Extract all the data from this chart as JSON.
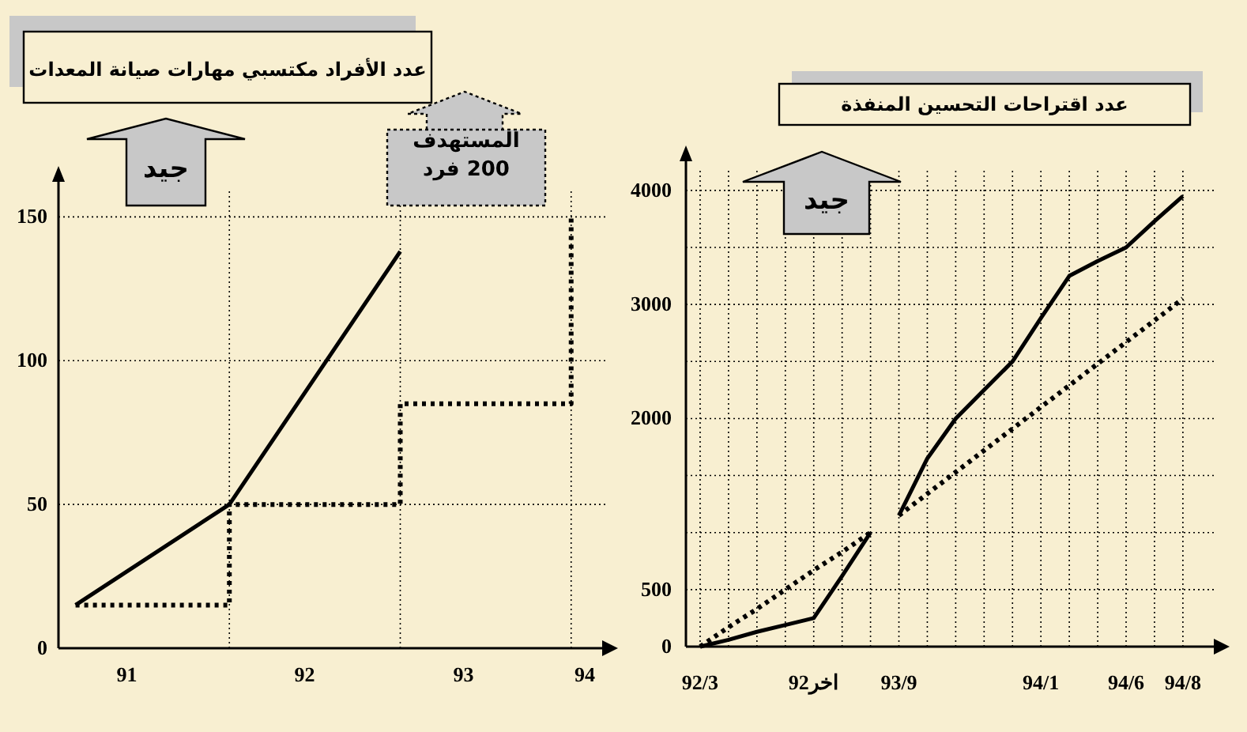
{
  "chart_data": [
    {
      "type": "line",
      "title": "عدد الأفراد مكتسبي مهارات صيانة المعدات",
      "annotations": [
        "جيد",
        "المستهدف\n200 فرد"
      ],
      "xlim": [
        91,
        94.2
      ],
      "ylim": [
        0,
        160
      ],
      "xticks": [
        {
          "value": 91.4,
          "label": "91"
        },
        {
          "value": 92.44,
          "label": "92"
        },
        {
          "value": 93.37,
          "label": "93"
        },
        {
          "value": 94.08,
          "label": "94"
        }
      ],
      "yticks": [
        0,
        50,
        100,
        150
      ],
      "grid": "y",
      "ref_lines": [
        {
          "axis": "x",
          "value": 92,
          "line_style": "dotted"
        },
        {
          "axis": "x",
          "value": 93,
          "line_style": "dotted"
        },
        {
          "axis": "x",
          "value": 94,
          "line_style": "dotted"
        }
      ],
      "series": [
        {
          "color": "#000000",
          "line_style": "solid",
          "x": [
            91.1,
            92,
            93
          ],
          "values": [
            15,
            50,
            138
          ]
        },
        {
          "color": "#000000",
          "line_style": "dotted",
          "x": [
            91.1,
            92,
            92,
            93,
            93,
            94,
            94
          ],
          "values": [
            15,
            15,
            50,
            50,
            85,
            85,
            150
          ]
        }
      ]
    },
    {
      "type": "line",
      "title": "عدد اقتراحات التحسين المنفذة",
      "annotations": [
        "جيد"
      ],
      "ylim": [
        0,
        4200
      ],
      "categories": [
        "92/3",
        null,
        null,
        null,
        "اخر92",
        null,
        null,
        "93/9",
        null,
        null,
        null,
        null,
        "94/1",
        null,
        null,
        "94/6",
        null,
        "94/8"
      ],
      "yticks": [
        0,
        500,
        {
          "value": 1000,
          "label": null
        },
        {
          "value": 1500,
          "label": null
        },
        2000,
        {
          "value": 2500,
          "label": null
        },
        3000,
        {
          "value": 3500,
          "label": null
        },
        4000
      ],
      "grid": true,
      "series": [
        {
          "color": "#000000",
          "line_style": "solid",
          "values": [
            0,
            60,
            130,
            190,
            250,
            620,
            1000,
            null,
            null,
            null,
            null,
            null,
            null,
            null,
            null,
            null,
            null,
            null
          ]
        },
        {
          "color": "#000000",
          "line_style": "solid",
          "values": [
            null,
            null,
            null,
            null,
            null,
            null,
            null,
            1150,
            1650,
            2000,
            2250,
            2500,
            2880,
            3250,
            3380,
            3500,
            3730,
            3950
          ]
        },
        {
          "color": "#000000",
          "line_style": "dotted",
          "values": [
            0,
            170,
            330,
            500,
            670,
            830,
            1000,
            null,
            null,
            null,
            null,
            null,
            null,
            null,
            null,
            null,
            null,
            null
          ]
        },
        {
          "color": "#000000",
          "line_style": "dotted",
          "values": [
            null,
            null,
            null,
            null,
            null,
            null,
            null,
            1150,
            1340,
            1530,
            1720,
            1910,
            2100,
            2290,
            2480,
            2670,
            2860,
            3050
          ]
        }
      ]
    }
  ]
}
